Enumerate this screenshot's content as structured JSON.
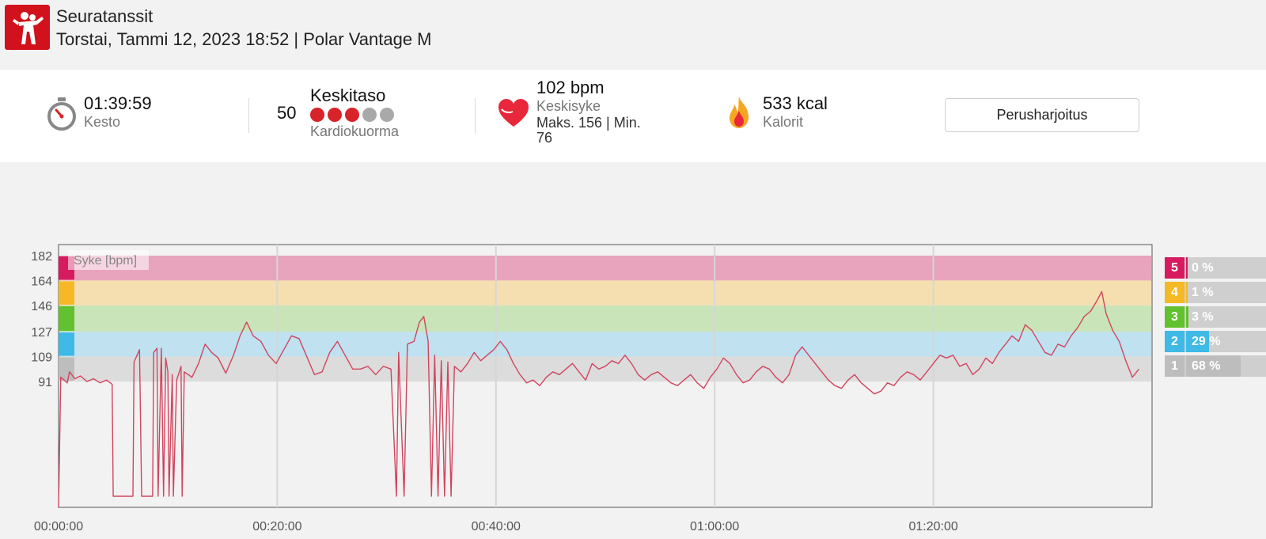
{
  "header": {
    "sport_name": "Seuratanssit",
    "session_line": "Torstai, Tammi 12, 2023 18:52 | Polar Vantage M",
    "logo_icon": "dancing-couple-icon"
  },
  "summary": {
    "duration": {
      "value": "01:39:59",
      "label": "Kesto",
      "icon": "stopwatch-icon"
    },
    "cardio_load": {
      "number": "50",
      "level": "Keskitaso",
      "label": "Kardiokuorma",
      "dots_filled": 3,
      "dots_total": 5,
      "filled_color": "#d8232a",
      "empty_color": "#a9a9a9"
    },
    "heart_rate": {
      "avg": "102 bpm",
      "label": "Keskisyke",
      "max_min": "Maks. 156  |  Min.",
      "min_value": "76",
      "icon": "heart-icon"
    },
    "calories": {
      "value": "533 kcal",
      "label": "Kalorit",
      "icon": "flame-icon"
    },
    "mode_button": "Perusharjoitus"
  },
  "chart_data": {
    "type": "line",
    "series_label": "Syke [bpm]",
    "line_color": "#d0455e",
    "ylim": [
      0,
      190
    ],
    "xlim_minutes": [
      0,
      100
    ],
    "y_ticks": [
      "182",
      "164",
      "146",
      "127",
      "109",
      "91"
    ],
    "x_ticks": [
      "00:00:00",
      "00:20:00",
      "00:40:00",
      "01:00:00",
      "01:20:00"
    ],
    "zones": [
      {
        "zone": "5",
        "from": 164,
        "to": 182,
        "color": "#e8a3bd",
        "tab_color": "#d81b60"
      },
      {
        "zone": "4",
        "from": 146,
        "to": 164,
        "color": "#f5dfb0",
        "tab_color": "#f4b924"
      },
      {
        "zone": "3",
        "from": 127,
        "to": 146,
        "color": "#c9e4b8",
        "tab_color": "#62c12e"
      },
      {
        "zone": "2",
        "from": 109,
        "to": 127,
        "color": "#bfe1f0",
        "tab_color": "#3fb9e5"
      },
      {
        "zone": "1",
        "from": 91,
        "to": 109,
        "color": "#dcdcdc",
        "tab_color": "#bdbdbd"
      }
    ],
    "points": [
      [
        0,
        0
      ],
      [
        0.2,
        94
      ],
      [
        0.8,
        90
      ],
      [
        1,
        98
      ],
      [
        1.5,
        93
      ],
      [
        2,
        95
      ],
      [
        2.6,
        91
      ],
      [
        3.2,
        93
      ],
      [
        3.8,
        90
      ],
      [
        4.4,
        92
      ],
      [
        4.9,
        89
      ],
      [
        5.0,
        8
      ],
      [
        6.8,
        8
      ],
      [
        6.9,
        105
      ],
      [
        7.4,
        114
      ],
      [
        7.6,
        8
      ],
      [
        8.6,
        8
      ],
      [
        8.7,
        112
      ],
      [
        9.0,
        115
      ],
      [
        9.1,
        8
      ],
      [
        9.4,
        115
      ],
      [
        9.6,
        8
      ],
      [
        9.8,
        108
      ],
      [
        10.0,
        98
      ],
      [
        10.1,
        8
      ],
      [
        10.4,
        96
      ],
      [
        10.5,
        8
      ],
      [
        10.8,
        92
      ],
      [
        11.2,
        102
      ],
      [
        11.3,
        8
      ],
      [
        11.5,
        98
      ],
      [
        12.2,
        94
      ],
      [
        12.8,
        104
      ],
      [
        13.4,
        118
      ],
      [
        14.0,
        112
      ],
      [
        14.6,
        108
      ],
      [
        15.3,
        97
      ],
      [
        16.0,
        110
      ],
      [
        16.6,
        124
      ],
      [
        17.2,
        134
      ],
      [
        17.8,
        124
      ],
      [
        18.5,
        120
      ],
      [
        19.2,
        110
      ],
      [
        19.9,
        104
      ],
      [
        20.6,
        114
      ],
      [
        21.3,
        124
      ],
      [
        22.0,
        122
      ],
      [
        22.7,
        109
      ],
      [
        23.4,
        96
      ],
      [
        24.1,
        98
      ],
      [
        24.8,
        112
      ],
      [
        25.5,
        120
      ],
      [
        26.2,
        110
      ],
      [
        26.9,
        100
      ],
      [
        27.6,
        100
      ],
      [
        28.3,
        102
      ],
      [
        29.0,
        96
      ],
      [
        29.7,
        102
      ],
      [
        30.4,
        100
      ],
      [
        30.9,
        8
      ],
      [
        31.1,
        112
      ],
      [
        31.6,
        8
      ],
      [
        31.9,
        118
      ],
      [
        32.5,
        120
      ],
      [
        33.0,
        134
      ],
      [
        33.4,
        138
      ],
      [
        33.8,
        120
      ],
      [
        34.1,
        8
      ],
      [
        34.4,
        110
      ],
      [
        34.7,
        8
      ],
      [
        35.0,
        106
      ],
      [
        35.3,
        8
      ],
      [
        35.6,
        105
      ],
      [
        35.9,
        8
      ],
      [
        36.2,
        102
      ],
      [
        36.8,
        98
      ],
      [
        37.4,
        104
      ],
      [
        38.0,
        112
      ],
      [
        38.6,
        106
      ],
      [
        39.2,
        110
      ],
      [
        39.8,
        114
      ],
      [
        40.4,
        120
      ],
      [
        41.0,
        114
      ],
      [
        41.6,
        104
      ],
      [
        42.2,
        96
      ],
      [
        42.8,
        90
      ],
      [
        43.4,
        92
      ],
      [
        44.0,
        88
      ],
      [
        44.6,
        94
      ],
      [
        45.2,
        98
      ],
      [
        45.8,
        96
      ],
      [
        46.4,
        100
      ],
      [
        47.0,
        104
      ],
      [
        47.6,
        98
      ],
      [
        48.2,
        92
      ],
      [
        48.8,
        104
      ],
      [
        49.4,
        100
      ],
      [
        50.0,
        102
      ],
      [
        50.6,
        106
      ],
      [
        51.2,
        104
      ],
      [
        51.8,
        110
      ],
      [
        52.4,
        104
      ],
      [
        53.0,
        96
      ],
      [
        53.6,
        92
      ],
      [
        54.2,
        96
      ],
      [
        54.8,
        98
      ],
      [
        55.4,
        94
      ],
      [
        56.0,
        90
      ],
      [
        56.6,
        88
      ],
      [
        57.2,
        92
      ],
      [
        57.8,
        96
      ],
      [
        58.4,
        90
      ],
      [
        59.0,
        86
      ],
      [
        59.6,
        94
      ],
      [
        60.2,
        100
      ],
      [
        60.8,
        108
      ],
      [
        61.4,
        104
      ],
      [
        62.0,
        96
      ],
      [
        62.6,
        90
      ],
      [
        63.2,
        92
      ],
      [
        63.8,
        98
      ],
      [
        64.4,
        102
      ],
      [
        65.0,
        100
      ],
      [
        65.6,
        94
      ],
      [
        66.2,
        90
      ],
      [
        66.8,
        96
      ],
      [
        67.4,
        110
      ],
      [
        68.0,
        116
      ],
      [
        68.6,
        110
      ],
      [
        69.2,
        104
      ],
      [
        69.8,
        98
      ],
      [
        70.4,
        92
      ],
      [
        71.0,
        88
      ],
      [
        71.6,
        86
      ],
      [
        72.2,
        92
      ],
      [
        72.8,
        96
      ],
      [
        73.4,
        90
      ],
      [
        74.0,
        86
      ],
      [
        74.6,
        82
      ],
      [
        75.2,
        84
      ],
      [
        75.8,
        90
      ],
      [
        76.4,
        88
      ],
      [
        77.0,
        94
      ],
      [
        77.6,
        98
      ],
      [
        78.2,
        96
      ],
      [
        78.8,
        92
      ],
      [
        79.4,
        98
      ],
      [
        80.0,
        104
      ],
      [
        80.6,
        110
      ],
      [
        81.2,
        108
      ],
      [
        81.8,
        110
      ],
      [
        82.4,
        102
      ],
      [
        83.0,
        104
      ],
      [
        83.6,
        96
      ],
      [
        84.2,
        100
      ],
      [
        84.8,
        108
      ],
      [
        85.4,
        104
      ],
      [
        86.0,
        112
      ],
      [
        86.6,
        118
      ],
      [
        87.2,
        124
      ],
      [
        87.8,
        120
      ],
      [
        88.4,
        132
      ],
      [
        89.0,
        128
      ],
      [
        89.6,
        120
      ],
      [
        90.2,
        112
      ],
      [
        90.8,
        110
      ],
      [
        91.4,
        118
      ],
      [
        92.0,
        116
      ],
      [
        92.6,
        124
      ],
      [
        93.2,
        130
      ],
      [
        93.8,
        138
      ],
      [
        94.4,
        142
      ],
      [
        95.0,
        150
      ],
      [
        95.4,
        156
      ],
      [
        95.8,
        140
      ],
      [
        96.4,
        128
      ],
      [
        97.0,
        120
      ],
      [
        97.6,
        106
      ],
      [
        98.2,
        94
      ],
      [
        98.8,
        100
      ]
    ]
  },
  "zone_summary": [
    {
      "zone": "5",
      "percent": "0 %",
      "fraction": 0.0,
      "color": "#d81b60"
    },
    {
      "zone": "4",
      "percent": "1 %",
      "fraction": 0.01,
      "color": "#f4b924"
    },
    {
      "zone": "3",
      "percent": "3 %",
      "fraction": 0.03,
      "color": "#62c12e"
    },
    {
      "zone": "2",
      "percent": "29 %",
      "fraction": 0.29,
      "color": "#3fb9e5"
    },
    {
      "zone": "1",
      "percent": "68 %",
      "fraction": 0.68,
      "color": "#bdbdbd"
    }
  ]
}
